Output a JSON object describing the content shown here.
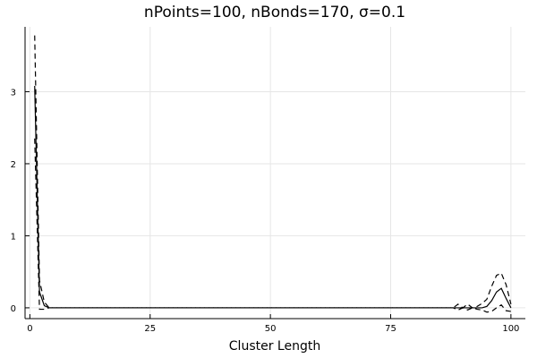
{
  "chart_data": {
    "type": "line",
    "title": "nPoints=100, nBonds=170, σ=0.1",
    "xlabel": "Cluster Length",
    "ylabel": "",
    "xlim": [
      -1,
      103
    ],
    "ylim": [
      -0.15,
      3.9
    ],
    "xticks": [
      0,
      25,
      50,
      75,
      100
    ],
    "yticks": [
      0,
      1,
      2,
      3
    ],
    "grid": true,
    "legend": "none",
    "series": [
      {
        "style": "solid",
        "x": [
          1,
          2,
          3,
          4,
          5,
          10,
          20,
          30,
          40,
          50,
          60,
          70,
          80,
          85,
          88,
          89,
          90,
          91,
          92,
          93,
          94,
          95,
          96,
          97,
          98,
          99,
          100
        ],
        "y": [
          3.08,
          0.22,
          0.03,
          0.0,
          0.0,
          0.0,
          0.0,
          0.0,
          0.0,
          0.0,
          0.0,
          0.0,
          0.0,
          0.0,
          0.0,
          0.0,
          0.0,
          0.0,
          0.0,
          0.0,
          0.0,
          0.02,
          0.1,
          0.22,
          0.27,
          0.13,
          0.0
        ]
      },
      {
        "style": "dashed",
        "x": [
          1,
          2,
          3,
          4,
          5,
          10,
          20,
          30,
          40,
          50,
          60,
          70,
          80,
          85,
          88,
          89,
          90,
          91,
          92,
          93,
          94,
          95,
          96,
          97,
          98,
          99,
          100
        ],
        "y": [
          3.78,
          0.38,
          0.08,
          0.0,
          0.0,
          0.0,
          0.0,
          0.0,
          0.0,
          0.0,
          0.0,
          0.0,
          0.0,
          0.0,
          0.0,
          0.05,
          0.0,
          0.05,
          0.0,
          0.02,
          0.06,
          0.12,
          0.3,
          0.45,
          0.48,
          0.32,
          0.05
        ]
      },
      {
        "style": "dashed",
        "x": [
          1,
          2,
          3,
          4,
          5,
          10,
          20,
          30,
          40,
          50,
          60,
          70,
          80,
          85,
          88,
          89,
          90,
          91,
          92,
          93,
          94,
          95,
          96,
          97,
          98,
          99,
          100
        ],
        "y": [
          2.35,
          -0.02,
          -0.02,
          0.0,
          0.0,
          0.0,
          0.0,
          0.0,
          0.0,
          0.0,
          0.0,
          0.0,
          0.0,
          0.0,
          0.0,
          -0.03,
          0.0,
          -0.03,
          0.0,
          -0.02,
          -0.03,
          -0.06,
          -0.05,
          0.0,
          0.04,
          -0.04,
          -0.05
        ]
      }
    ]
  }
}
